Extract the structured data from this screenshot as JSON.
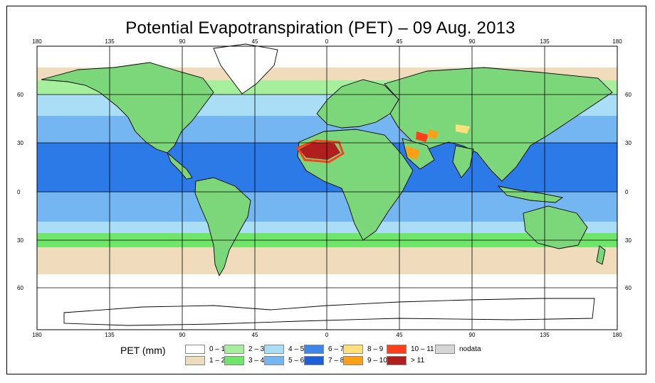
{
  "title": "Potential Evapotranspiration (PET) – 09 Aug. 2013",
  "axes": {
    "lon_labels": [
      "180",
      "135",
      "90",
      "45",
      "0",
      "45",
      "90",
      "135",
      "180"
    ],
    "lat_left": [
      "60",
      "30",
      "0",
      "30",
      "60"
    ],
    "lat_right": [
      "60",
      "30",
      "0",
      "30",
      "60"
    ]
  },
  "legend": {
    "title": "PET (mm)",
    "items": [
      {
        "label": "0 – 1",
        "color": "#ffffff"
      },
      {
        "label": "1 – 2",
        "color": "#f0dcbd"
      },
      {
        "label": "2 – 3",
        "color": "#a6ef9c"
      },
      {
        "label": "3 – 4",
        "color": "#6fe56a"
      },
      {
        "label": "4 – 5",
        "color": "#a9def6"
      },
      {
        "label": "5 – 6",
        "color": "#74b6f2"
      },
      {
        "label": "6 – 7",
        "color": "#3f86e8"
      },
      {
        "label": "7 – 8",
        "color": "#1d5fd9"
      },
      {
        "label": "8 – 9",
        "color": "#ffe07a"
      },
      {
        "label": "9 – 10",
        "color": "#ff9f14"
      },
      {
        "label": "10 – 11",
        "color": "#ff3e1a"
      },
      {
        "label": "> 11",
        "color": "#b01e1e"
      },
      {
        "label": "nodata",
        "color": "#d6d6d6"
      }
    ]
  },
  "colors": {
    "ocean_high": "#2b7ae8",
    "ocean_mid": "#7ab9f2",
    "grid": "#000000",
    "coast": "#000000"
  }
}
